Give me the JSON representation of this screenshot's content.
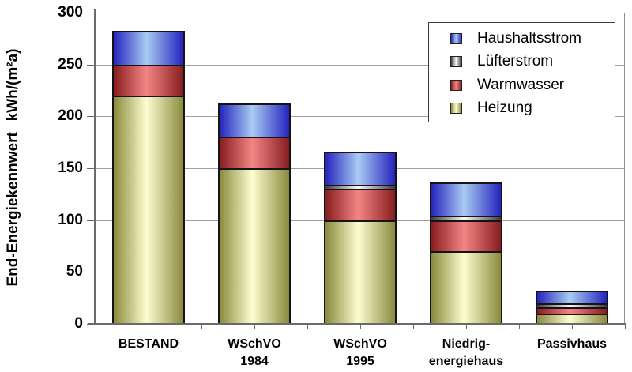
{
  "chart_data": {
    "type": "bar",
    "stacked": true,
    "title": "",
    "xlabel": "",
    "ylabel": "End-Energiekennwert kWh/(m²a)",
    "ylim": [
      0,
      300
    ],
    "ytick_step": 50,
    "ytick_labels": [
      "0",
      "50",
      "100",
      "150",
      "200",
      "250",
      "300"
    ],
    "grid": true,
    "categories": [
      [
        "BESTAND"
      ],
      [
        "WSchVO",
        "1984"
      ],
      [
        "WSchVO",
        "1995"
      ],
      [
        "Niedrig-",
        "energiehaus"
      ],
      [
        "Passivhaus"
      ]
    ],
    "series": [
      {
        "name": "Heizung",
        "values": [
          220,
          150,
          100,
          70,
          10
        ],
        "color_edge": "#8a8a3c",
        "color_mid": "#fdfdd2"
      },
      {
        "name": "Warmwasser",
        "values": [
          30,
          30,
          30,
          30,
          6
        ],
        "color_edge": "#871d1f",
        "color_mid": "#f48585"
      },
      {
        "name": "Lüfterstrom",
        "values": [
          0,
          0,
          4,
          4,
          4
        ],
        "color_edge": "#3c3c3c",
        "color_mid": "#fbfbfb"
      },
      {
        "name": "Haushaltsstrom",
        "values": [
          32,
          32,
          32,
          32,
          12
        ],
        "color_edge": "#2424be",
        "color_mid": "#a9cbf2"
      }
    ],
    "legend": {
      "position": "top-right",
      "items": [
        "Haushaltsstrom",
        "Lüfterstrom",
        "Warmwasser",
        "Heizung"
      ]
    }
  },
  "colors": {
    "background": "#ffffff",
    "gridline": "#9e9e9e",
    "axis": "#6a6a6a",
    "bar_border": "#141414",
    "legend_border": "#3c3c3c",
    "text": "#000000"
  }
}
